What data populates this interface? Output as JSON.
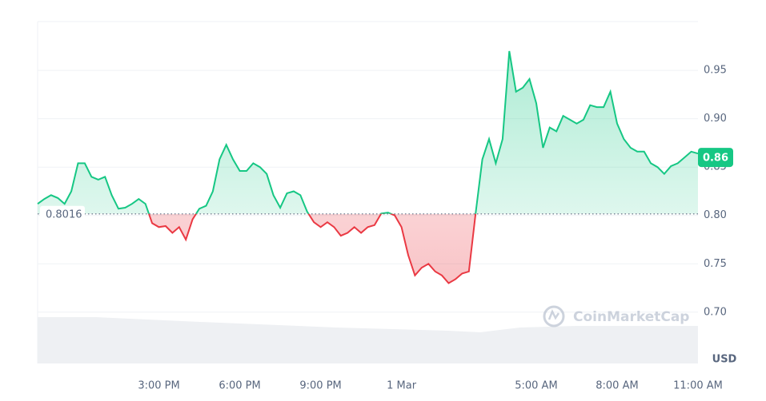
{
  "chart_data": {
    "type": "line",
    "values": [
      0.812,
      0.817,
      0.821,
      0.818,
      0.812,
      0.825,
      0.854,
      0.854,
      0.84,
      0.837,
      0.84,
      0.821,
      0.807,
      0.808,
      0.812,
      0.817,
      0.812,
      0.792,
      0.788,
      0.789,
      0.782,
      0.788,
      0.775,
      0.796,
      0.807,
      0.81,
      0.825,
      0.858,
      0.873,
      0.858,
      0.846,
      0.846,
      0.854,
      0.85,
      0.843,
      0.821,
      0.808,
      0.823,
      0.825,
      0.821,
      0.804,
      0.793,
      0.788,
      0.793,
      0.788,
      0.779,
      0.782,
      0.788,
      0.782,
      0.788,
      0.79,
      0.802,
      0.803,
      0.8,
      0.788,
      0.759,
      0.738,
      0.746,
      0.75,
      0.742,
      0.738,
      0.73,
      0.734,
      0.74,
      0.742,
      0.802,
      0.858,
      0.879,
      0.854,
      0.879,
      0.97,
      0.928,
      0.932,
      0.941,
      0.916,
      0.87,
      0.891,
      0.887,
      0.903,
      0.899,
      0.895,
      0.899,
      0.914,
      0.912,
      0.912,
      0.928,
      0.895,
      0.879,
      0.87,
      0.866,
      0.866,
      0.854,
      0.85,
      0.843,
      0.851,
      0.854,
      0.86,
      0.866,
      0.864
    ],
    "baseline": 0.8016,
    "last_price": {
      "value": 0.86,
      "label": "0.86"
    },
    "up_color": "#16c784",
    "down_color": "#ea3943",
    "ylim": [
      0.68,
      1.0
    ],
    "yticks": [
      {
        "value": 0.7,
        "label": "0.70"
      },
      0.75,
      {
        "value": 0.8,
        "label": "0.80"
      },
      0.85,
      {
        "value": 0.9,
        "label": "0.90"
      },
      0.95
    ],
    "xticks": [
      {
        "value": 18,
        "label": "3:00 PM"
      },
      {
        "value": 30,
        "label": "6:00 PM"
      },
      {
        "value": 42,
        "label": "9:00 PM"
      },
      {
        "value": 54,
        "label": "1 Mar"
      },
      {
        "value": 74,
        "label": "5:00 AM"
      },
      {
        "value": 86,
        "label": "8:00 AM"
      },
      {
        "value": 98,
        "label": "11:00 AM"
      }
    ],
    "y_axis_label": "USD",
    "watermark": "CoinMarketCap",
    "grid": true
  }
}
